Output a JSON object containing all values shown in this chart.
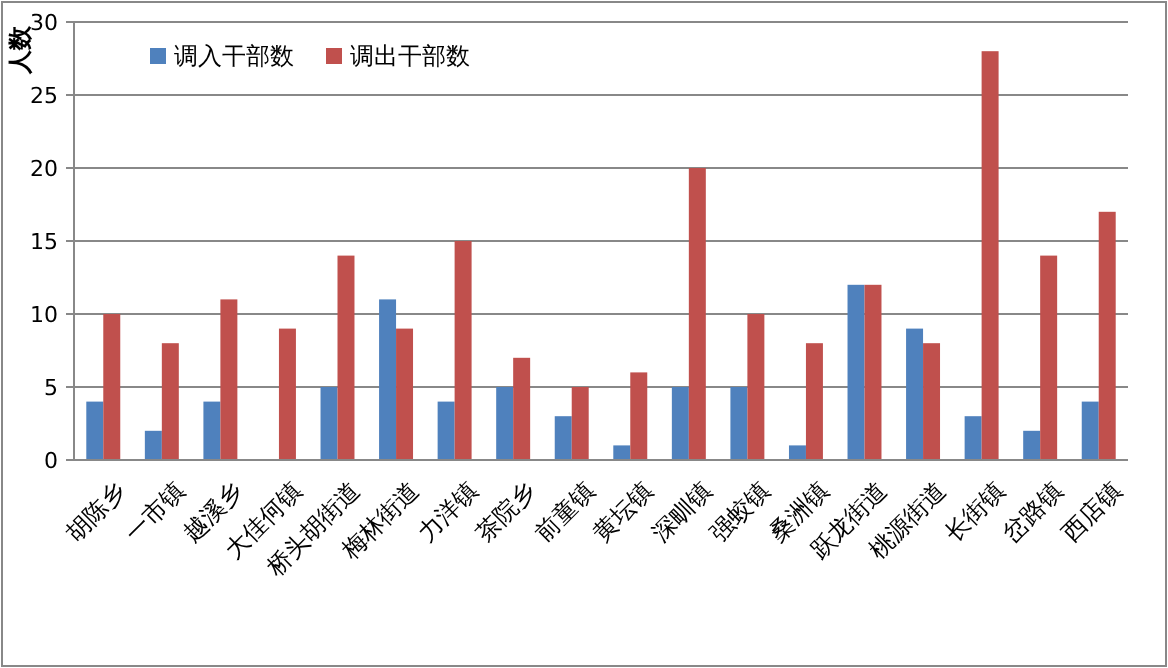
{
  "chart_data": {
    "type": "bar",
    "ylabel": "人数",
    "categories": [
      "胡陈乡",
      "一市镇",
      "越溪乡",
      "大佳何镇",
      "桥头胡街道",
      "梅林街道",
      "力洋镇",
      "茶院乡",
      "前童镇",
      "黄坛镇",
      "深甽镇",
      "强蛟镇",
      "桑洲镇",
      "跃龙街道",
      "桃源街道",
      "长街镇",
      "岔路镇",
      "西店镇"
    ],
    "series": [
      {
        "name": "调入干部数",
        "color": "#4f81bd",
        "values": [
          4,
          2,
          4,
          0,
          5,
          11,
          4,
          5,
          3,
          1,
          5,
          5,
          1,
          12,
          9,
          3,
          2,
          4
        ]
      },
      {
        "name": "调出干部数",
        "color": "#c0504d",
        "values": [
          10,
          8,
          11,
          9,
          14,
          9,
          15,
          7,
          5,
          6,
          20,
          10,
          8,
          12,
          8,
          28,
          14,
          17
        ]
      }
    ],
    "ylim": [
      0,
      30
    ],
    "yticks": [
      0,
      5,
      10,
      15,
      20,
      25,
      30
    ],
    "grid": "y",
    "legend": "top left"
  }
}
